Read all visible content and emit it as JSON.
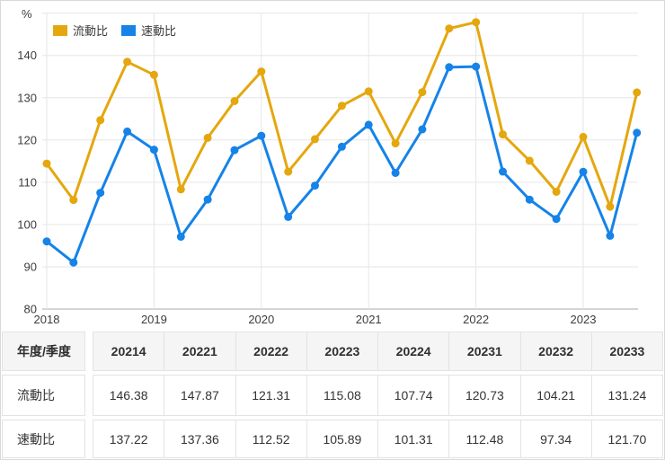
{
  "chart": {
    "unit_label": "%",
    "legend": [
      {
        "label": "流動比",
        "color": "#e5a70e"
      },
      {
        "label": "速動比",
        "color": "#1583e8"
      }
    ],
    "y_ticks": [
      "80",
      "90",
      "100",
      "110",
      "120",
      "130",
      "140"
    ],
    "x_ticks": [
      "2018",
      "2019",
      "2020",
      "2021",
      "2022",
      "2023"
    ],
    "grid_color": "#e6e6e6",
    "axis_color": "#c6c6c6",
    "tick_text_color": "#3c3c3c"
  },
  "chart_data": {
    "type": "line",
    "title": "",
    "xlabel": "年度/季度",
    "ylabel": "%",
    "ylim": [
      80,
      150
    ],
    "grid": true,
    "legend_position": "top-left",
    "x": [
      "2018Q1",
      "2018Q2",
      "2018Q3",
      "2018Q4",
      "2019Q1",
      "2019Q2",
      "2019Q3",
      "2019Q4",
      "2020Q1",
      "2020Q2",
      "2020Q3",
      "2020Q4",
      "2021Q1",
      "2021Q2",
      "2021Q3",
      "2021Q4",
      "2022Q1",
      "2022Q2",
      "2022Q3",
      "2022Q4",
      "2023Q1",
      "2023Q2",
      "2023Q3"
    ],
    "x_year_ticks": [
      "2018",
      "2019",
      "2020",
      "2021",
      "2022",
      "2023"
    ],
    "series": [
      {
        "name": "流動比",
        "color": "#e5a70e",
        "values": [
          114.4,
          105.8,
          124.7,
          138.5,
          135.4,
          108.3,
          120.5,
          129.2,
          136.2,
          112.5,
          120.2,
          128.1,
          131.5,
          119.2,
          131.3,
          146.38,
          147.87,
          121.31,
          115.08,
          107.74,
          120.73,
          104.21,
          131.24
        ]
      },
      {
        "name": "速動比",
        "color": "#1583e8",
        "values": [
          96.0,
          91.0,
          107.5,
          122.0,
          117.7,
          97.1,
          105.9,
          117.6,
          121.0,
          101.8,
          109.2,
          118.4,
          123.6,
          112.2,
          122.5,
          137.22,
          137.36,
          112.52,
          105.89,
          101.31,
          112.48,
          97.34,
          121.7
        ]
      }
    ]
  },
  "table": {
    "corner_label": "年度/季度",
    "columns": [
      "20214",
      "20221",
      "20222",
      "20223",
      "20224",
      "20231",
      "20232",
      "20233"
    ],
    "rows": [
      {
        "label": "流動比",
        "values": [
          "146.38",
          "147.87",
          "121.31",
          "115.08",
          "107.74",
          "120.73",
          "104.21",
          "131.24"
        ]
      },
      {
        "label": "速動比",
        "values": [
          "137.22",
          "137.36",
          "112.52",
          "105.89",
          "101.31",
          "112.48",
          "97.34",
          "121.70"
        ]
      }
    ]
  }
}
